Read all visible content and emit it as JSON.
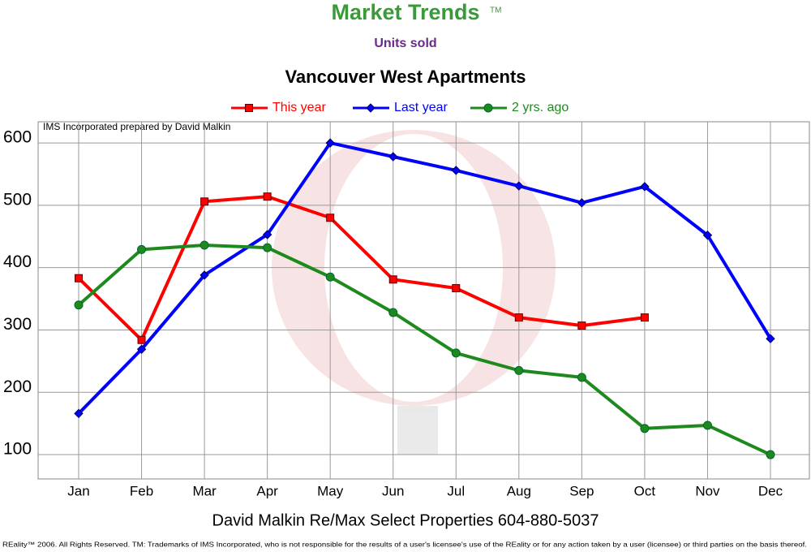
{
  "chart_data": {
    "type": "line",
    "title": "Market Trends",
    "trademark": "TM",
    "subtitle": "Units sold",
    "chart_title": "Vancouver West Apartments",
    "annotation": "IMS Incorporated prepared by David Malkin",
    "footer": "David Malkin Re/Max Select Properties 604-880-5037",
    "copyright": "REality™ 2006. All Rights Reserved. TM: Trademarks of IMS Incorporated, who is not responsible for the results of a user's licensee's use of the REality  or for any action taken by a user (licensee) or third parties on the basis thereof.",
    "categories": [
      "Jan",
      "Feb",
      "Mar",
      "Apr",
      "May",
      "Jun",
      "Jul",
      "Aug",
      "Sep",
      "Oct",
      "Nov",
      "Dec"
    ],
    "series": [
      {
        "name": "This year",
        "color": "#ff0000",
        "marker": "square",
        "values": [
          383,
          284,
          506,
          514,
          480,
          381,
          367,
          320,
          307,
          320,
          null,
          null
        ]
      },
      {
        "name": "Last year",
        "color": "#0000ff",
        "marker": "diamond",
        "values": [
          166,
          269,
          388,
          453,
          600,
          578,
          556,
          531,
          504,
          530,
          452,
          286
        ]
      },
      {
        "name": "2 yrs. ago",
        "color": "#1e8a1e",
        "marker": "circle",
        "values": [
          340,
          429,
          436,
          432,
          385,
          328,
          263,
          235,
          224,
          142,
          147,
          100
        ]
      }
    ],
    "ylim": [
      61,
      634
    ],
    "yticks": [
      100,
      200,
      300,
      400,
      500,
      600
    ],
    "grid": true,
    "legend": "top"
  }
}
